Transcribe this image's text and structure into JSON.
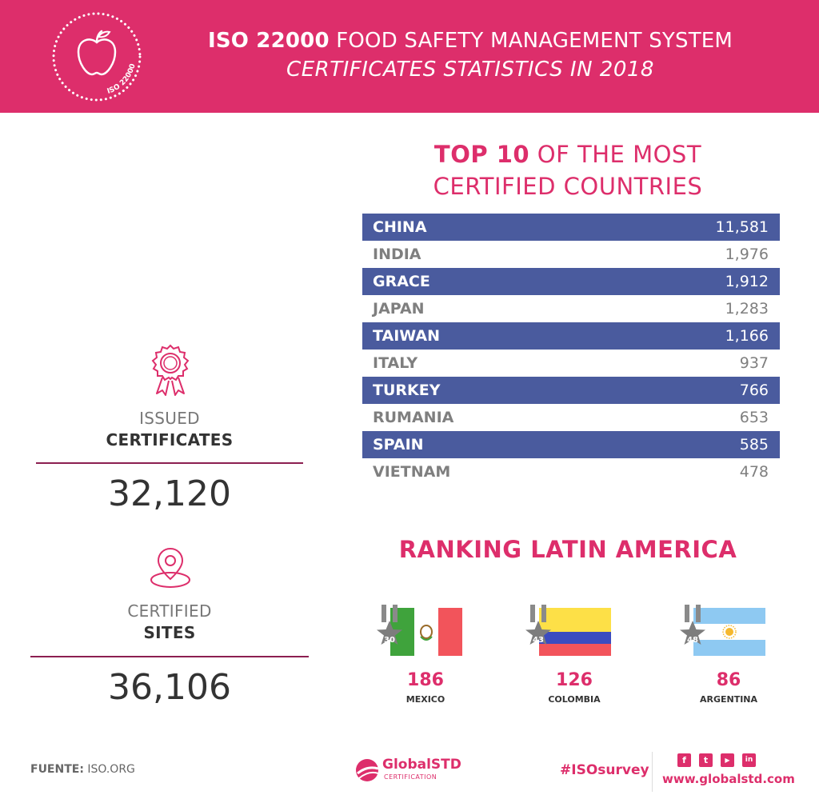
{
  "header": {
    "title_bold": "ISO 22000",
    "title_rest": " FOOD SAFETY MANAGEMENT SYSTEM",
    "subtitle": "CERTIFICATES STATISTICS IN 2018",
    "badge_text": "ISO 22000"
  },
  "top10": {
    "title_bold": "TOP 10",
    "title_rest": " OF THE MOST",
    "title_line2": "CERTIFIED COUNTRIES",
    "rows": [
      {
        "name": "CHINA",
        "value": "11,581"
      },
      {
        "name": "INDIA",
        "value": "1,976"
      },
      {
        "name": "GRACE",
        "value": "1,912"
      },
      {
        "name": "JAPAN",
        "value": "1,283"
      },
      {
        "name": "TAIWAN",
        "value": "1,166"
      },
      {
        "name": "ITALY",
        "value": "937"
      },
      {
        "name": "TURKEY",
        "value": "766"
      },
      {
        "name": "RUMANIA",
        "value": "653"
      },
      {
        "name": "SPAIN",
        "value": "585"
      },
      {
        "name": "VIETNAM",
        "value": "478"
      }
    ]
  },
  "stats": {
    "certificates": {
      "label1": "ISSUED",
      "label2": "CERTIFICATES",
      "value": "32,120"
    },
    "sites": {
      "label1": "CERTIFIED",
      "label2": "SITES",
      "value": "36,106"
    }
  },
  "latam": {
    "title": "RANKING LATIN AMERICA",
    "countries": [
      {
        "rank": "30",
        "value": "186",
        "name": "MEXICO"
      },
      {
        "rank": "43",
        "value": "126",
        "name": "COLOMBIA"
      },
      {
        "rank": "48",
        "value": "86",
        "name": "ARGENTINA"
      }
    ]
  },
  "footer": {
    "source_label": "FUENTE:",
    "source_value": " ISO.ORG",
    "brand": "GlobalSTD",
    "brand_sub": "CERTIFICATION",
    "hashtag": "#ISOsurvey",
    "website": "www.globalstd.com",
    "socials": [
      "f",
      "t",
      "yt",
      "in"
    ]
  },
  "colors": {
    "accent": "#dd2e6b",
    "table_dark": "#4a5b9e",
    "rule": "#8c1f51"
  }
}
